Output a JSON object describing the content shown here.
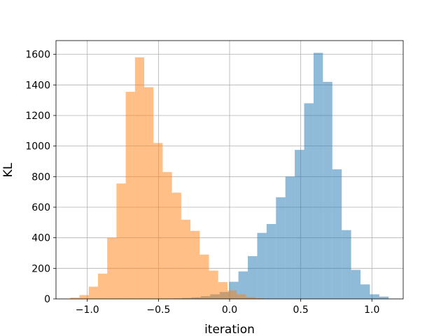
{
  "chart_data": {
    "type": "bar",
    "subtype": "histogram",
    "xlabel": "iteration",
    "ylabel": "KL",
    "xlim": [
      -1.22,
      1.22
    ],
    "ylim": [
      0,
      1690
    ],
    "xticks": [
      -1.0,
      -0.5,
      0.0,
      0.5,
      1.0
    ],
    "xtick_labels": [
      "−1.0",
      "−0.5",
      "0.0",
      "0.5",
      "1.0"
    ],
    "yticks": [
      0,
      200,
      400,
      600,
      800,
      1000,
      1200,
      1400,
      1600
    ],
    "ytick_labels": [
      "0",
      "200",
      "400",
      "600",
      "800",
      "1000",
      "1200",
      "1400",
      "1600"
    ],
    "grid": true,
    "series": [
      {
        "color": "#1f77b4",
        "alpha": 0.5,
        "bin_edges": [
          -0.4,
          -0.334,
          -0.268,
          -0.202,
          -0.136,
          -0.07,
          -0.004,
          0.062,
          0.128,
          0.194,
          0.26,
          0.326,
          0.392,
          0.458,
          0.524,
          0.59,
          0.656,
          0.722,
          0.788,
          0.854,
          0.92,
          0.986,
          1.052,
          1.118
        ],
        "counts": [
          3,
          6,
          10,
          18,
          30,
          45,
          112,
          180,
          280,
          432,
          490,
          665,
          800,
          975,
          1280,
          1610,
          1420,
          848,
          450,
          190,
          95,
          30,
          15
        ]
      },
      {
        "color": "#ff7f0e",
        "alpha": 0.5,
        "bin_edges": [
          -1.12,
          -1.055,
          -0.99,
          -0.925,
          -0.86,
          -0.795,
          -0.73,
          -0.665,
          -0.6,
          -0.535,
          -0.47,
          -0.405,
          -0.34,
          -0.275,
          -0.21,
          -0.145,
          -0.08,
          -0.015,
          0.05,
          0.115,
          0.18,
          0.245
        ],
        "counts": [
          8,
          25,
          80,
          165,
          400,
          755,
          1355,
          1580,
          1385,
          1020,
          830,
          695,
          518,
          445,
          290,
          185,
          110,
          55,
          30,
          12,
          5
        ]
      }
    ]
  }
}
